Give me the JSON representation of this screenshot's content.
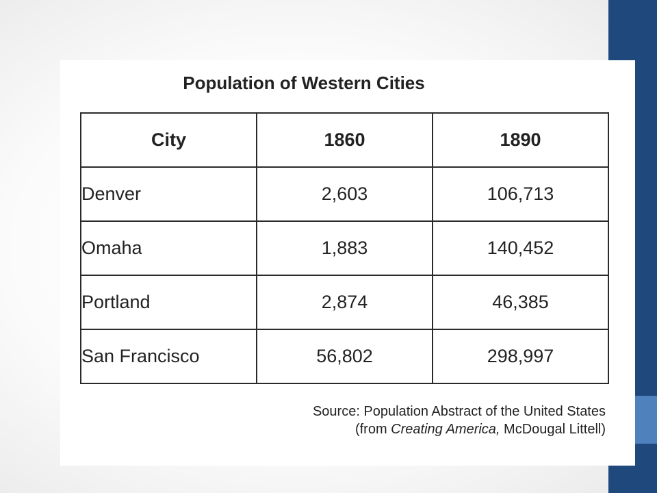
{
  "chart_data": {
    "type": "table",
    "title": "Population of Western Cities",
    "columns": [
      "City",
      "1860",
      "1890"
    ],
    "rows": [
      {
        "city": "Denver",
        "y1860": "2,603",
        "y1890": "106,713"
      },
      {
        "city": "Omaha",
        "y1860": "1,883",
        "y1890": "140,452"
      },
      {
        "city": "Portland",
        "y1860": "2,874",
        "y1890": "46,385"
      },
      {
        "city": "San Francisco",
        "y1860": "56,802",
        "y1890": "298,997"
      }
    ],
    "source": {
      "line1": "Source: Population Abstract of the United States",
      "line2_prefix": "(from ",
      "line2_italic": "Creating America,",
      "line2_suffix": " McDougal Littell)"
    }
  },
  "colors": {
    "side_bar": "#1f497d",
    "side_accent": "#4f81bd",
    "text": "#222222"
  }
}
